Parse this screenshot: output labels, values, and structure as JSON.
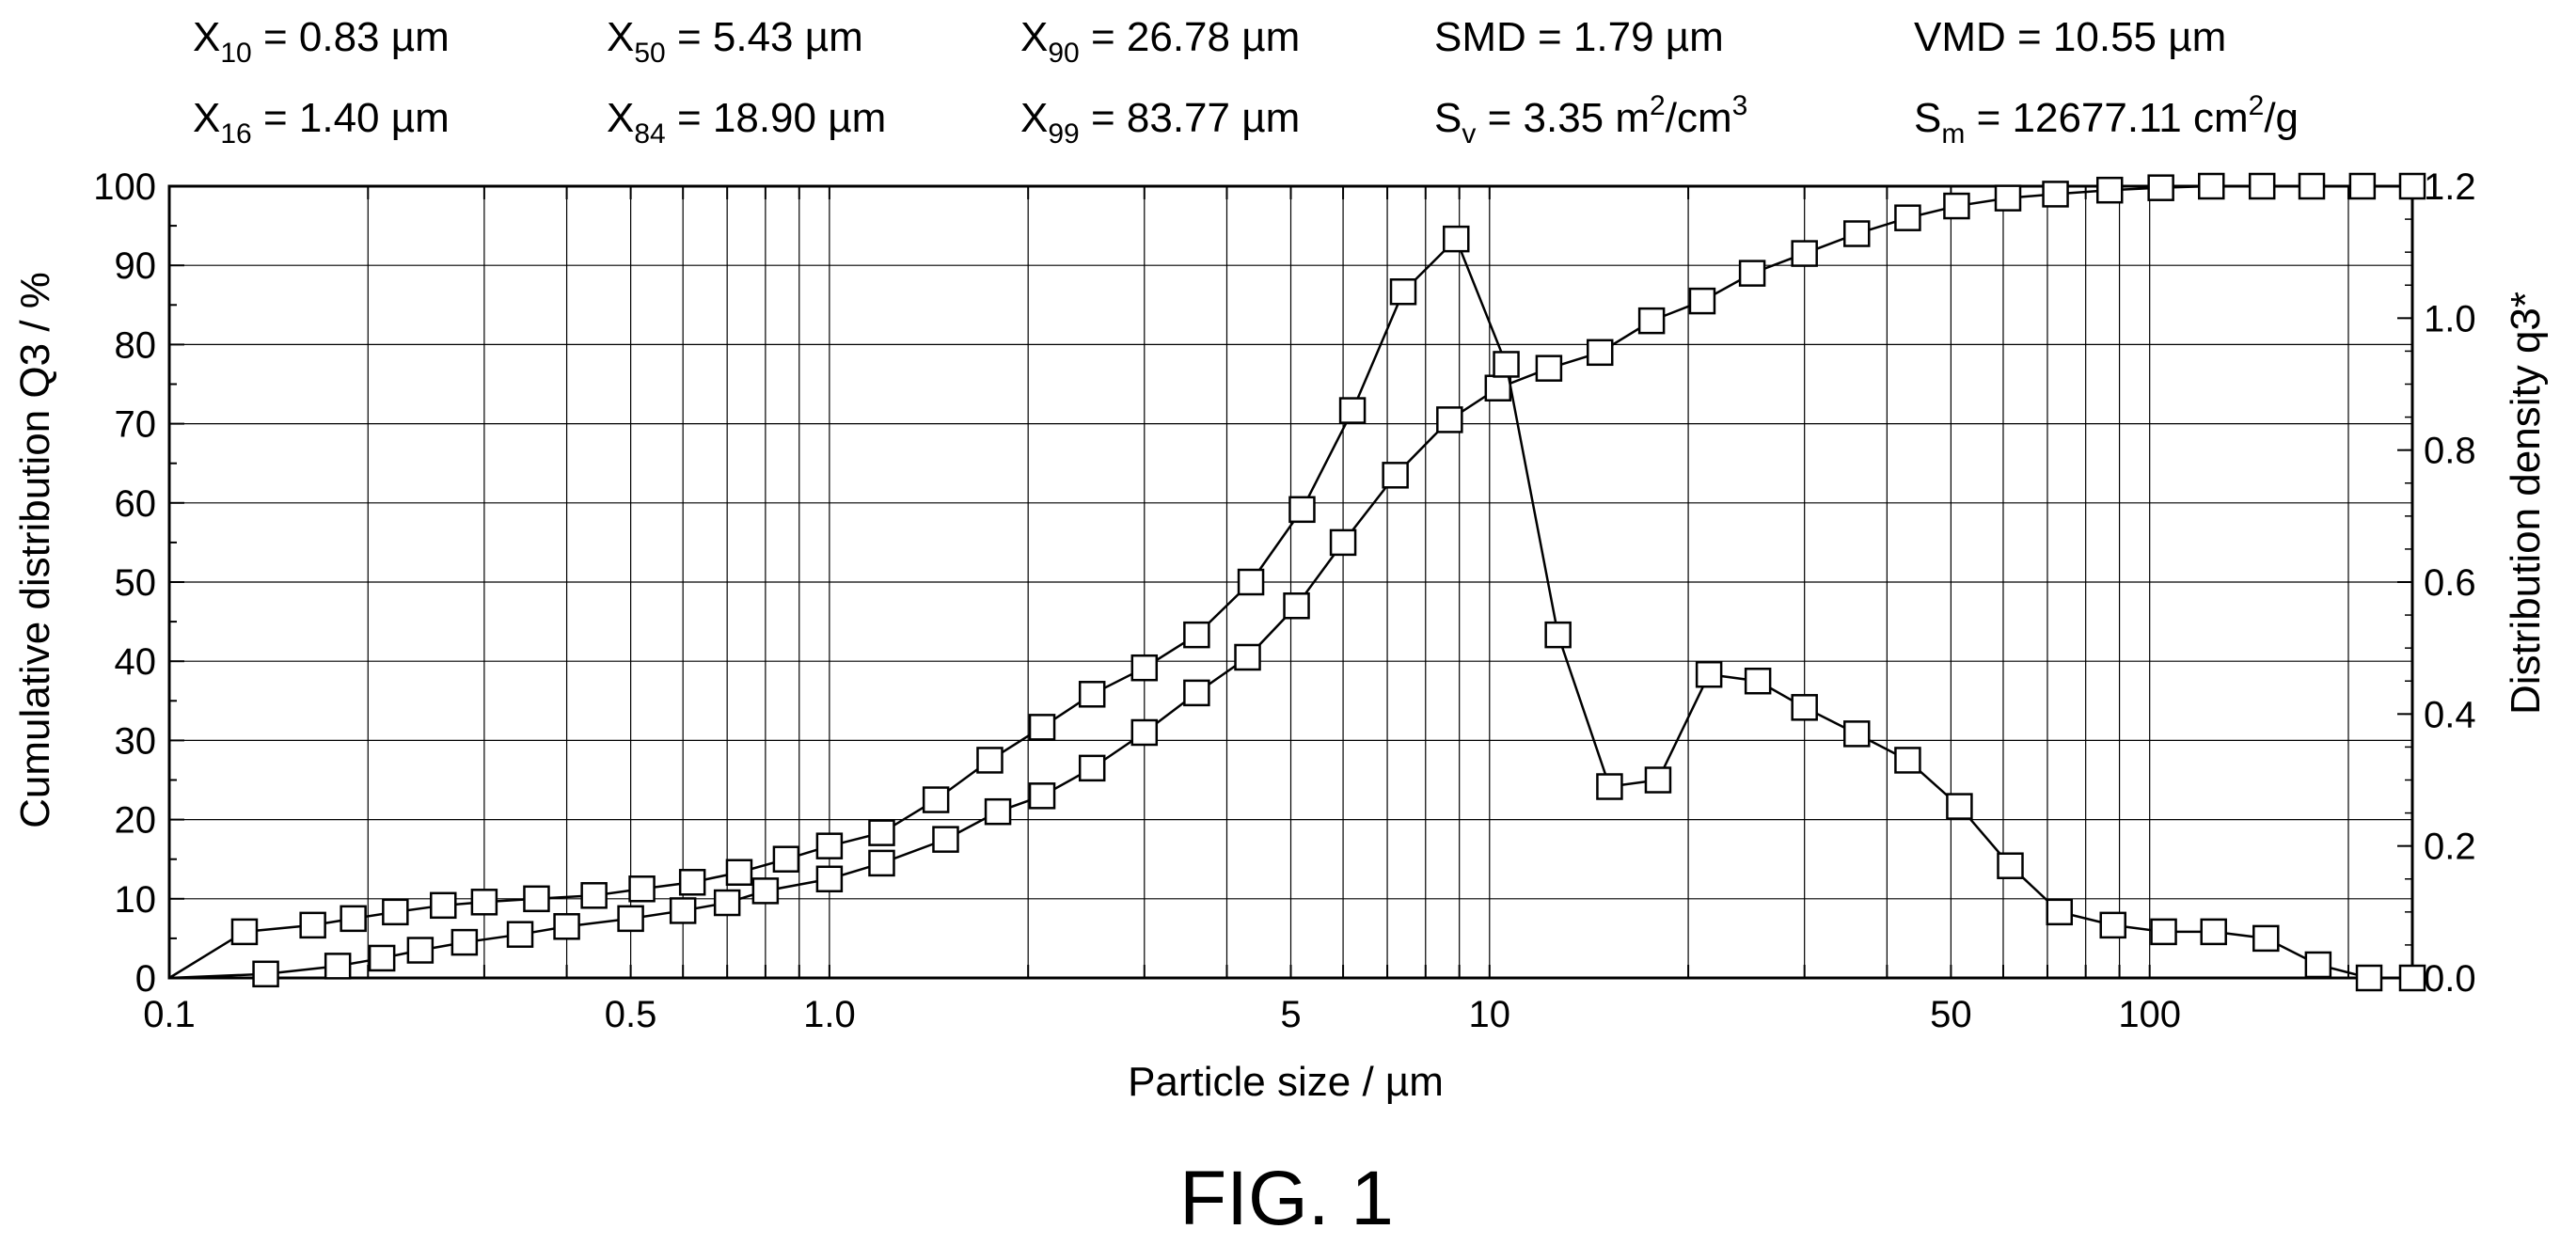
{
  "stats": {
    "x10": {
      "sym": "X",
      "sub": "10",
      "rest": " = 0.83 µm"
    },
    "x50": {
      "sym": "X",
      "sub": "50",
      "rest": " = 5.43 µm"
    },
    "x90": {
      "sym": "X",
      "sub": "90",
      "rest": " = 26.78 µm"
    },
    "smd": {
      "text": "SMD = 1.79 µm"
    },
    "vmd": {
      "text": "VMD = 10.55 µm"
    },
    "x16": {
      "sym": "X",
      "sub": "16",
      "rest": " = 1.40 µm"
    },
    "x84": {
      "sym": "X",
      "sub": "84",
      "rest": " = 18.90 µm"
    },
    "x99": {
      "sym": "X",
      "sub": "99",
      "rest": " = 83.77 µm"
    },
    "sv": {
      "sym": "S",
      "sub": "v",
      "rest": " = 3.35 m",
      "sup1": "2",
      "rest2": "/cm",
      "sup2": "3"
    },
    "sm": {
      "sym": "S",
      "sub": "m",
      "rest": " = 12677.11 cm",
      "sup1": "2",
      "rest2": "/g"
    }
  },
  "caption": "FIG. 1",
  "chart_data": {
    "type": "line",
    "xlabel": "Particle size / µm",
    "ylabel": "Cumulative distribution Q3 / %",
    "y2label": "Distribution density q3*",
    "x_scale": "log",
    "xlim": [
      0.1,
      250
    ],
    "ylim": [
      0,
      100
    ],
    "y2lim": [
      0,
      1.2
    ],
    "grid": true,
    "marker": "open-square",
    "x_tick_labels": [
      "0.1",
      "0.5",
      "1.0",
      "5",
      "10",
      "50",
      "100"
    ],
    "x_tick_values": [
      0.1,
      0.5,
      1,
      5,
      10,
      50,
      100
    ],
    "y_ticks": [
      0,
      10,
      20,
      30,
      40,
      50,
      60,
      70,
      80,
      90,
      100
    ],
    "y2_tick_labels": [
      "0.0",
      "0.2",
      "0.4",
      "0.6",
      "0.8",
      "1.0",
      "1.2"
    ],
    "y2_tick_values": [
      0,
      0.2,
      0.4,
      0.6,
      0.8,
      1.0,
      1.2
    ],
    "series": [
      {
        "axis": "left",
        "x": [
          0.1,
          0.14,
          0.18,
          0.21,
          0.24,
          0.28,
          0.34,
          0.4,
          0.5,
          0.6,
          0.7,
          0.8,
          1.0,
          1.2,
          1.5,
          1.8,
          2.1,
          2.5,
          3.0,
          3.6,
          4.3,
          5.1,
          6.0,
          7.2,
          8.7,
          10.3,
          12.3,
          14.7,
          17.6,
          21.0,
          25.0,
          30.0,
          36.0,
          43.0,
          51.0,
          61.0,
          72.0,
          87.0,
          104.0,
          124.0,
          148.0,
          176.0,
          210.0,
          250.0
        ],
        "y": [
          0,
          0.5,
          1.5,
          2.5,
          3.5,
          4.5,
          5.5,
          6.5,
          7.5,
          8.5,
          9.5,
          11.0,
          12.5,
          14.5,
          17.5,
          21.0,
          23.0,
          26.5,
          31.0,
          36.0,
          40.5,
          47.0,
          55.0,
          63.5,
          70.5,
          74.5,
          77.0,
          79.0,
          83.0,
          85.5,
          89.0,
          91.5,
          94.0,
          96.0,
          97.5,
          98.5,
          99.0,
          99.5,
          99.8,
          100.0,
          100.0,
          100.0,
          100.0,
          100.0
        ]
      },
      {
        "axis": "right",
        "x": [
          0.1,
          0.13,
          0.165,
          0.19,
          0.22,
          0.26,
          0.3,
          0.36,
          0.44,
          0.52,
          0.62,
          0.73,
          0.86,
          1.0,
          1.2,
          1.45,
          1.75,
          2.1,
          2.5,
          3.0,
          3.6,
          4.35,
          5.2,
          6.2,
          7.4,
          8.9,
          10.6,
          12.7,
          15.2,
          18.0,
          21.5,
          25.5,
          30.0,
          36.0,
          43.0,
          51.5,
          61.5,
          73.0,
          88.0,
          105.0,
          125.0,
          150.0,
          180.0,
          215.0,
          250.0
        ],
        "y": [
          0.0,
          0.07,
          0.08,
          0.09,
          0.1,
          0.11,
          0.115,
          0.12,
          0.125,
          0.135,
          0.145,
          0.16,
          0.18,
          0.2,
          0.22,
          0.27,
          0.33,
          0.38,
          0.43,
          0.47,
          0.52,
          0.6,
          0.71,
          0.86,
          1.04,
          1.12,
          0.93,
          0.52,
          0.29,
          0.3,
          0.46,
          0.45,
          0.41,
          0.37,
          0.33,
          0.26,
          0.17,
          0.1,
          0.08,
          0.07,
          0.07,
          0.06,
          0.02,
          0.0,
          0.0
        ]
      }
    ]
  }
}
